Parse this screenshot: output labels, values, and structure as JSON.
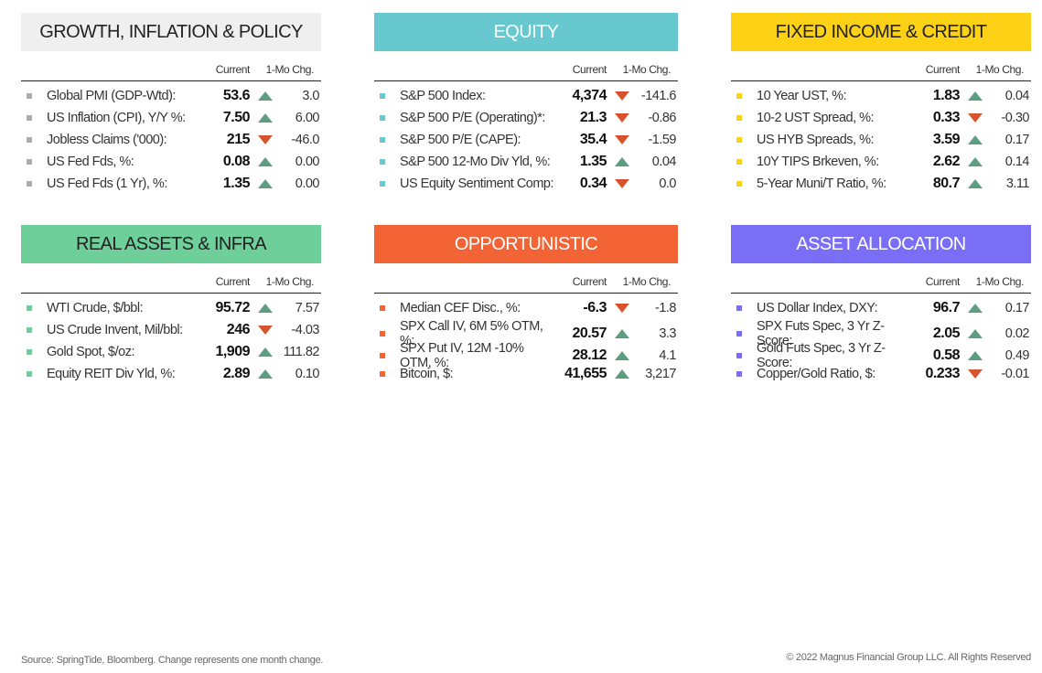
{
  "panels": [
    {
      "title": "GROWTH, INFLATION & POLICY",
      "color": "#efefef",
      "columns": [
        "Current",
        "1-Mo Chg."
      ],
      "rows": [
        {
          "label": "Global PMI (GDP-Wtd):",
          "current": "53.6",
          "change": "3.0",
          "direction": "up"
        },
        {
          "label": "US Inflation (CPI), Y/Y %:",
          "current": "7.50",
          "change": "6.00",
          "direction": "up"
        },
        {
          "label": "Jobless Claims ('000):",
          "current": "215",
          "change": "-46.0",
          "direction": "down"
        },
        {
          "label": "US Fed Fds, %:",
          "current": "0.08",
          "change": "0.00",
          "direction": "up"
        },
        {
          "label": "US Fed Fds (1 Yr), %:",
          "current": "1.35",
          "change": "0.00",
          "direction": "up"
        }
      ]
    },
    {
      "title": "EQUITY",
      "color": "#67c8d0",
      "columns": [
        "Current",
        "1-Mo Chg."
      ],
      "rows": [
        {
          "label": "S&P 500 Index:",
          "current": "4,374",
          "change": "-141.6",
          "direction": "down"
        },
        {
          "label": "S&P 500 P/E (Operating)*:",
          "current": "21.3",
          "change": "-0.86",
          "direction": "down"
        },
        {
          "label": "S&P 500 P/E (CAPE):",
          "current": "35.4",
          "change": "-1.59",
          "direction": "down"
        },
        {
          "label": "S&P 500 12-Mo Div Yld, %:",
          "current": "1.35",
          "change": "0.04",
          "direction": "up"
        },
        {
          "label": "US Equity Sentiment Comp:",
          "current": "0.34",
          "change": "0.0",
          "direction": "down"
        }
      ]
    },
    {
      "title": "FIXED INCOME & CREDIT",
      "color": "#fcd116",
      "columns": [
        "Current",
        "1-Mo Chg."
      ],
      "rows": [
        {
          "label": "10 Year UST, %:",
          "current": "1.83",
          "change": "0.04",
          "direction": "up"
        },
        {
          "label": "10-2 UST Spread, %:",
          "current": "0.33",
          "change": "-0.30",
          "direction": "down"
        },
        {
          "label": "US HYB Spreads, %:",
          "current": "3.59",
          "change": "0.17",
          "direction": "up"
        },
        {
          "label": "10Y TIPS Brkeven, %:",
          "current": "2.62",
          "change": "0.14",
          "direction": "up"
        },
        {
          "label": "5-Year Muni/T Ratio, %:",
          "current": "80.7",
          "change": "3.11",
          "direction": "up"
        }
      ]
    },
    {
      "title": "REAL ASSETS & INFRA",
      "color": "#6fcf9b",
      "columns": [
        "Current",
        "1-Mo Chg."
      ],
      "rows": [
        {
          "label": "WTI Crude, $/bbl:",
          "current": "95.72",
          "change": "7.57",
          "direction": "up"
        },
        {
          "label": "US Crude Invent, Mil/bbl:",
          "current": "246",
          "change": "-4.03",
          "direction": "down"
        },
        {
          "label": "Gold Spot, $/oz:",
          "current": "1,909",
          "change": "111.82",
          "direction": "up"
        },
        {
          "label": "Equity REIT Div Yld, %:",
          "current": "2.89",
          "change": "0.10",
          "direction": "up"
        }
      ]
    },
    {
      "title": "OPPORTUNISTIC",
      "color": "#f26336",
      "columns": [
        "Current",
        "1-Mo Chg."
      ],
      "rows": [
        {
          "label": "Median CEF Disc., %:",
          "current": "-6.3",
          "change": "-1.8",
          "direction": "down"
        },
        {
          "label": "SPX Call IV, 6M 5% OTM, %:",
          "current": "20.57",
          "change": "3.3",
          "direction": "up"
        },
        {
          "label": "SPX Put IV, 12M -10% OTM, %:",
          "current": "28.12",
          "change": "4.1",
          "direction": "up"
        },
        {
          "label": "Bitcoin, $:",
          "current": "41,655",
          "change": "3,217",
          "direction": "up"
        }
      ]
    },
    {
      "title": "ASSET ALLOCATION",
      "color": "#7b6ef6",
      "columns": [
        "Current",
        "1-Mo Chg."
      ],
      "rows": [
        {
          "label": "US Dollar Index, DXY:",
          "current": "96.7",
          "change": "0.17",
          "direction": "up"
        },
        {
          "label": "SPX Futs Spec, 3 Yr Z-Score:",
          "current": "2.05",
          "change": "0.02",
          "direction": "up"
        },
        {
          "label": "Gold Futs Spec, 3 Yr Z-Score:",
          "current": "0.58",
          "change": "0.49",
          "direction": "up"
        },
        {
          "label": "Copper/Gold Ratio, $:",
          "current": "0.233",
          "change": "-0.01",
          "direction": "down"
        }
      ]
    }
  ],
  "footer": {
    "source": "Source: SpringTide, Bloomberg. Change represents one month change.",
    "copyright": "© 2022 Magnus Financial Group LLC. All Rights Reserved"
  }
}
